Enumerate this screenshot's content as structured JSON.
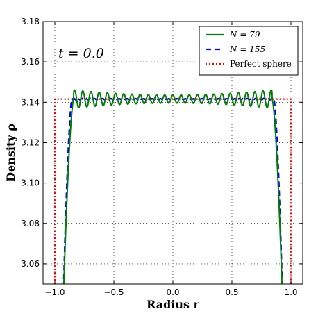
{
  "chart_data": {
    "type": "line",
    "xlabel": "Radius r",
    "ylabel": "Density ρ",
    "xlim": [
      -1.1,
      1.1
    ],
    "ylim": [
      3.05,
      3.18
    ],
    "xticks": [
      "−1.0",
      "−0.5",
      "0.0",
      "0.5",
      "1.0"
    ],
    "xtick_values": [
      -1.0,
      -0.5,
      0.0,
      0.5,
      1.0
    ],
    "yticks": [
      "3.06",
      "3.08",
      "3.10",
      "3.12",
      "3.14",
      "3.16",
      "3.18"
    ],
    "ytick_values": [
      3.06,
      3.08,
      3.1,
      3.12,
      3.14,
      3.16,
      3.18
    ],
    "grid": true,
    "legend_position": "top-right",
    "annotation": "t = 0.0",
    "series": [
      {
        "name": "N = 79",
        "color": "#007f00",
        "style": "solid",
        "model": {
          "plateau": 3.1416,
          "edge_start": 0.84,
          "edge_end": 0.935,
          "edge_min": 3.03,
          "ripple_amplitude": 0.0045,
          "ripple_period": 0.0694,
          "ripple_phase": 0.0,
          "ripple_offset": 0.0,
          "ripple_envelope": [
            0.45,
            1.0
          ]
        },
        "key_points": [
          [
            -0.91,
            3.05
          ],
          [
            -0.86,
            3.142
          ],
          [
            -0.78,
            3.146
          ],
          [
            -0.5,
            3.137
          ],
          [
            0.0,
            3.142
          ],
          [
            0.5,
            3.137
          ],
          [
            0.78,
            3.146
          ],
          [
            0.86,
            3.142
          ],
          [
            0.91,
            3.05
          ]
        ]
      },
      {
        "name": "N = 155",
        "color": "#0000ff",
        "style": "dashed",
        "model": {
          "plateau": 3.1416,
          "edge_start": 0.855,
          "edge_end": 0.935,
          "edge_min": 3.03,
          "ripple_amplitude": 0.0004,
          "ripple_period": 0.035,
          "ripple_phase": 0.0,
          "ripple_offset": 0.0,
          "ripple_envelope": [
            0.5,
            1.0
          ]
        },
        "key_points": [
          [
            -0.92,
            3.05
          ],
          [
            -0.86,
            3.141
          ],
          [
            0.0,
            3.1416
          ],
          [
            0.86,
            3.141
          ],
          [
            0.92,
            3.05
          ]
        ]
      },
      {
        "name": "Perfect sphere",
        "color": "#ff0000",
        "style": "dashdot",
        "points": [
          [
            -1.0,
            3.05
          ],
          [
            -1.0,
            3.1416
          ],
          [
            1.0,
            3.1416
          ],
          [
            1.0,
            3.05
          ]
        ]
      }
    ]
  }
}
